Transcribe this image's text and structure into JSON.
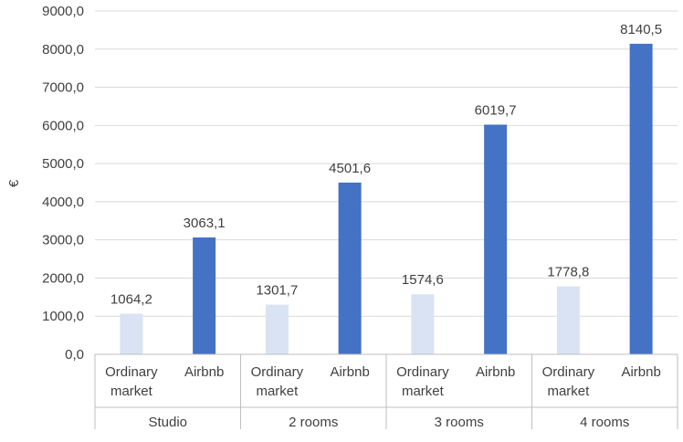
{
  "chart_data": {
    "type": "bar",
    "ylabel": "€",
    "ylim": [
      0,
      9000
    ],
    "ytick_step": 1000,
    "ytick_labels": [
      "0,0",
      "1000,0",
      "2000,0",
      "3000,0",
      "4000,0",
      "5000,0",
      "6000,0",
      "7000,0",
      "8000,0",
      "9000,0"
    ],
    "grid": true,
    "groups": [
      "Studio",
      "2 rooms",
      "3 rooms",
      "4 rooms"
    ],
    "subcategories": [
      [
        "Ordinary",
        "market"
      ],
      [
        "Airbnb"
      ]
    ],
    "series": [
      {
        "values": [
          1064.2,
          1301.7,
          1574.6,
          1778.8
        ],
        "labels": [
          "1064,2",
          "1301,7",
          "1574,6",
          "1778,8"
        ],
        "color": "#dae3f3"
      },
      {
        "values": [
          3063.1,
          4501.6,
          6019.7,
          8140.5
        ],
        "labels": [
          "3063,1",
          "4501,6",
          "6019,7",
          "8140,5"
        ],
        "color": "#4472c4"
      }
    ],
    "gridline_color": "#d9d9d9"
  }
}
